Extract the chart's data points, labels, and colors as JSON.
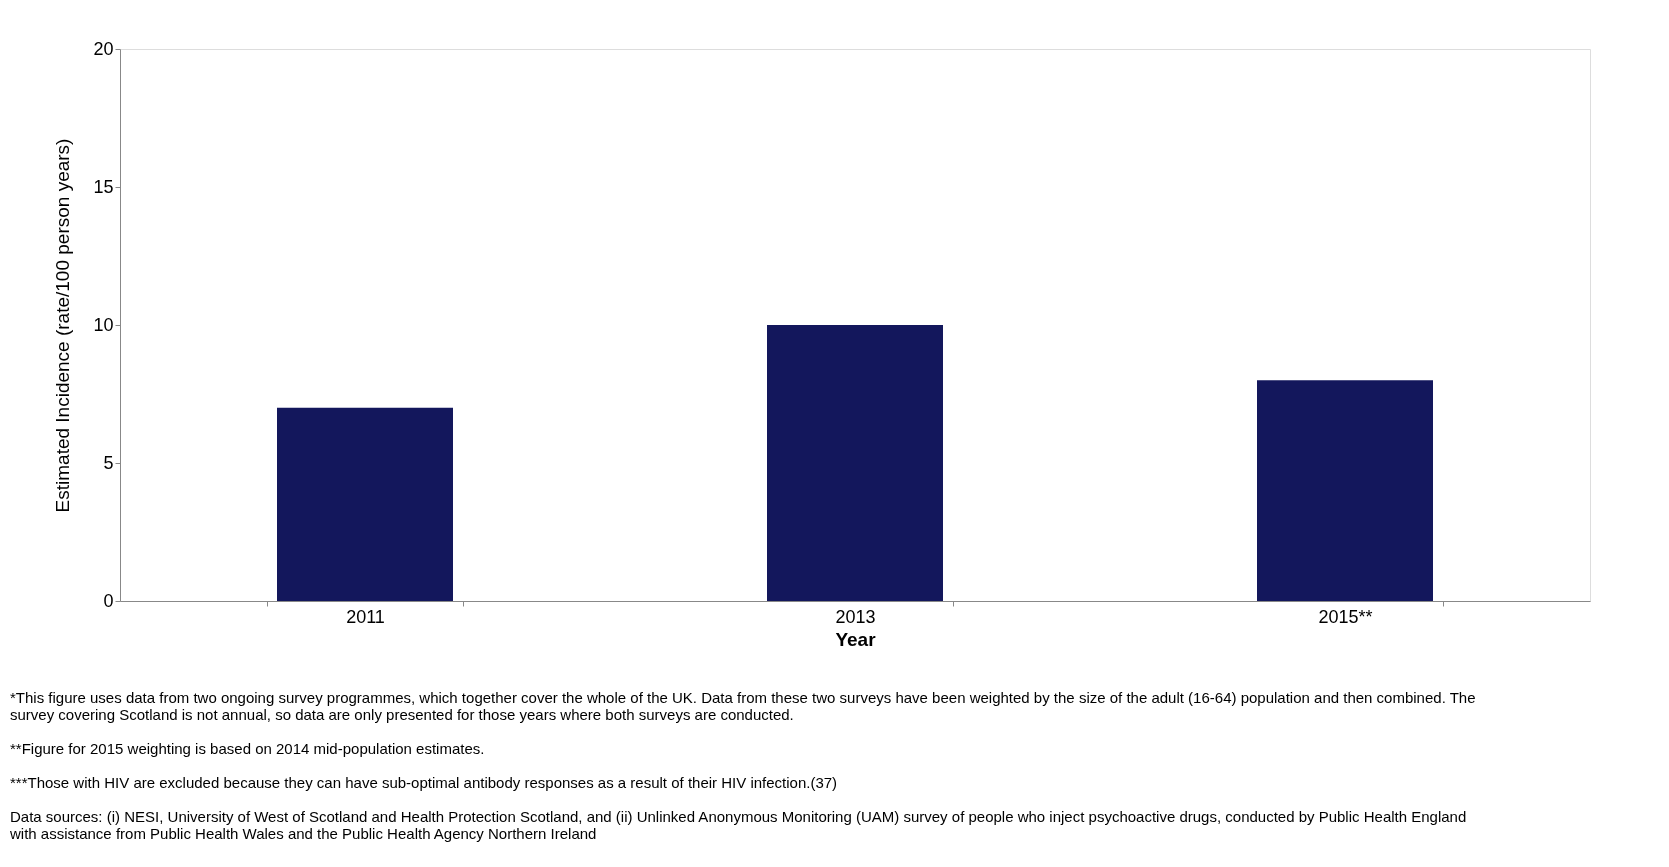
{
  "chart_data": {
    "type": "bar",
    "categories": [
      "2011",
      "2013",
      "2015**"
    ],
    "values": [
      7,
      10,
      8
    ],
    "color": "#13175c",
    "xlabel": "Year",
    "ylabel": "Estimated Incidence (rate/100 person years)",
    "ylim": [
      0,
      20
    ],
    "yticks": [
      0,
      5,
      10,
      15,
      20
    ],
    "grid": false,
    "annotations": [
      "*This figure uses data from two ongoing survey programmes, which together cover the whole of the UK. Data from these two surveys have been weighted by the size of the adult (16-64) population and then combined. The survey covering Scotland is not annual, so data are only presented for those years where both surveys are conducted.",
      "**Figure for 2015 weighting is based on 2014 mid-population estimates.",
      "***Those with HIV are excluded because they can have sub-optimal antibody responses as a result of their HIV infection.(37)",
      "Data sources: (i) NESI, University of West of Scotland and Health Protection Scotland, and (ii) Unlinked Anonymous Monitoring (UAM) survey of people who inject psychoactive drugs, conducted by Public Health England with assistance from Public Health Wales and the Public Health Agency Northern Ireland"
    ]
  }
}
